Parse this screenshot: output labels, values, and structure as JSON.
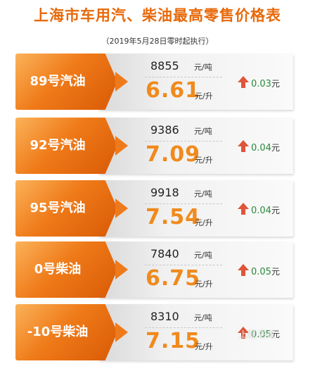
{
  "title": "上海市车用汽、柴油最高零售价格表",
  "subtitle": "（2019年5月28日零时起执行）",
  "units": {
    "ton": "元/吨",
    "liter": "元/升",
    "change": "元"
  },
  "colors": {
    "accent": "#ef7a18",
    "price": "#f08a1c",
    "increase_arrow": "#e0553a",
    "change_text": "#2a8a3a"
  },
  "rows": [
    {
      "label": "89号汽油",
      "ton_price": "8855",
      "liter_price": "6.61",
      "change": "0.03",
      "direction": "up"
    },
    {
      "label": "92号汽油",
      "ton_price": "9386",
      "liter_price": "7.09",
      "change": "0.04",
      "direction": "up"
    },
    {
      "label": "95号汽油",
      "ton_price": "9918",
      "liter_price": "7.54",
      "change": "0.04",
      "direction": "up"
    },
    {
      "label": "0号柴油",
      "ton_price": "7840",
      "liter_price": "6.75",
      "change": "0.05",
      "direction": "up"
    },
    {
      "label": "-10号柴油",
      "ton_price": "8310",
      "liter_price": "7.15",
      "change": "0.05",
      "direction": "up"
    }
  ],
  "watermark": "上观 彩虹"
}
